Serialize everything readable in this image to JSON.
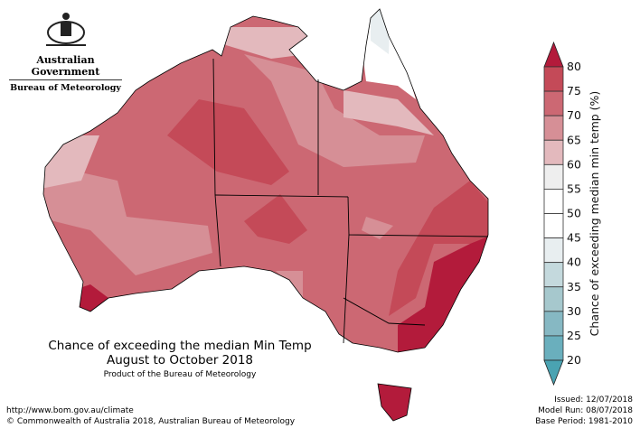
{
  "logo": {
    "line1": "Australian Government",
    "line2": "Bureau of Meteorology",
    "icon": "coat-of-arms"
  },
  "title": {
    "line1": "Chance of exceeding the median Min Temp",
    "line2": "August to October 2018",
    "line3": "Product of the Bureau of Meteorology"
  },
  "footer": {
    "url": "http://www.bom.gov.au/climate",
    "copyright": "© Commonwealth of Australia 2018, Australian Bureau of Meteorology"
  },
  "meta": {
    "issued": "Issued: 12/07/2018",
    "model_run": "Model Run: 08/07/2018",
    "base_period": "Base Period: 1981-2010"
  },
  "colorbar": {
    "label": "Chance of exceeding median min temp (%)",
    "ticks": [
      "80",
      "75",
      "70",
      "65",
      "60",
      "55",
      "50",
      "45",
      "40",
      "35",
      "30",
      "25",
      "20"
    ],
    "bins": [
      "#c44a58",
      "#cc6873",
      "#d68f96",
      "#e3b9bd",
      "#eeeeee",
      "#ffffff",
      "#ffffff",
      "#e8eef0",
      "#c4d9dd",
      "#a6c8cd",
      "#86b8c3",
      "#6aafbd"
    ],
    "over_color": "#b31b3b",
    "under_color": "#4aa3b2"
  }
}
